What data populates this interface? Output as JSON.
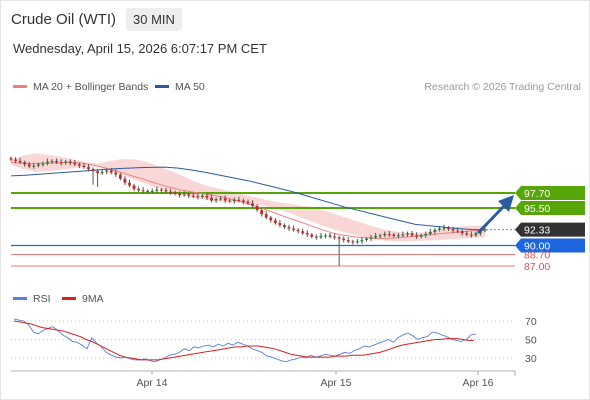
{
  "header": {
    "title": "Crude Oil (WTI)",
    "timeframe": "30 MIN",
    "datetime": "Wednesday, April 15, 2026 6:07:17 PM CET",
    "copyright": "Research © 2026 Trading Central"
  },
  "colors": {
    "bollinger": "#f4a6a6",
    "ma20": "#f08080",
    "ma50": "#2a5aa0",
    "up_candle": "#2e7d32",
    "down_candle": "#c62828",
    "resistance": "#56a60a",
    "support": "#1e66e0",
    "support_red": "#e05050",
    "last_price": "#333333",
    "arrow": "#2a5aa0",
    "rsi": "#5b7fd6",
    "rsi_ma": "#d82020"
  },
  "chart_data": [
    {
      "type": "candlestick",
      "legend": [
        {
          "label": "MA 20 + Bollinger Bands",
          "color": "#f08080"
        },
        {
          "label": "MA 50",
          "color": "#2a5aa0"
        }
      ],
      "x_ticks": [
        "Apr 14",
        "Apr 15",
        "Apr 16"
      ],
      "y_range": [
        86.5,
        100.5
      ],
      "levels": [
        {
          "label": "97.70",
          "value": 97.7,
          "kind": "resistance"
        },
        {
          "label": "95.50",
          "value": 95.5,
          "kind": "resistance"
        },
        {
          "label": "92.33",
          "value": 92.33,
          "kind": "last"
        },
        {
          "label": "90.00",
          "value": 90.0,
          "kind": "support"
        },
        {
          "label": "88.70",
          "value": 88.7,
          "kind": "support2"
        },
        {
          "label": "87.00",
          "value": 87.0,
          "kind": "support2"
        }
      ],
      "candles_close": [
        102.6,
        102.4,
        102.2,
        101.9,
        101.6,
        101.7,
        101.9,
        102.0,
        102.3,
        102.4,
        102.2,
        102.1,
        102.3,
        102.1,
        101.9,
        101.7,
        101.5,
        101.2,
        100.9,
        100.6,
        100.8,
        101.0,
        100.7,
        100.4,
        99.8,
        99.2,
        98.8,
        98.3,
        98.1,
        98.0,
        97.9,
        98.0,
        98.2,
        98.1,
        97.9,
        97.8,
        97.6,
        97.4,
        97.5,
        97.3,
        97.2,
        97.1,
        97.3,
        97.0,
        96.6,
        96.8,
        96.9,
        96.6,
        96.5,
        96.7,
        96.6,
        96.4,
        96.2,
        95.8,
        95.2,
        94.6,
        94.1,
        93.7,
        93.3,
        93.0,
        92.7,
        92.5,
        92.3,
        92.1,
        91.8,
        91.6,
        91.3,
        91.2,
        91.4,
        91.5,
        91.3,
        91.2,
        91.0,
        90.8,
        90.6,
        90.5,
        90.6,
        90.8,
        91.0,
        91.2,
        91.4,
        91.5,
        91.7,
        91.6,
        91.4,
        91.5,
        91.6,
        91.8,
        91.5,
        91.3,
        91.5,
        91.7,
        92.0,
        92.3,
        92.5,
        92.6,
        92.4,
        92.2,
        92.1,
        91.8,
        91.6,
        91.5,
        91.8,
        92.2,
        92.33
      ],
      "ma50": [
        100.2,
        100.3,
        100.45,
        100.6,
        100.75,
        100.9,
        101.05,
        101.2,
        101.3,
        101.4,
        101.45,
        101.5,
        101.35,
        101.05,
        100.7,
        100.3,
        99.9,
        99.5,
        99.0,
        98.5,
        98.0,
        97.4,
        96.8,
        96.2,
        95.6,
        95.1,
        94.6,
        94.1,
        93.6,
        93.1,
        92.9,
        92.7,
        92.5,
        92.35,
        92.33
      ],
      "ma20": [
        102.2,
        102.1,
        102.0,
        102.05,
        102.1,
        102.15,
        102.2,
        102.1,
        101.85,
        101.5,
        101.1,
        100.7,
        100.2,
        99.8,
        99.3,
        98.85,
        98.45,
        98.1,
        97.85,
        97.6,
        97.4,
        97.1,
        96.75,
        96.35,
        95.9,
        95.4,
        94.85,
        94.3,
        93.8,
        93.3,
        92.75,
        92.25,
        91.8,
        91.5,
        91.3,
        91.15,
        91.05,
        91.05,
        91.1,
        91.2,
        91.35,
        91.5,
        91.65,
        91.8,
        91.9,
        92.05,
        92.2,
        92.2
      ],
      "boll_upper": [
        102.6,
        103.2,
        103.5,
        103.3,
        103.0,
        102.6,
        102.2,
        102.0,
        102.4,
        102.7,
        102.6,
        102.2,
        101.5,
        100.8,
        100.0,
        99.2,
        98.6,
        98.2,
        97.8,
        97.3,
        96.9,
        96.5,
        96.2,
        95.9,
        95.7,
        95.2,
        94.6,
        94.0,
        93.4,
        92.8,
        92.3,
        92.0,
        91.8,
        91.9,
        92.2,
        92.6,
        92.8,
        92.9,
        92.9
      ],
      "boll_lower": [
        101.8,
        101.2,
        100.8,
        100.9,
        101.1,
        101.3,
        101.5,
        101.6,
        101.0,
        100.3,
        99.6,
        98.9,
        98.3,
        97.8,
        97.3,
        96.9,
        96.6,
        96.4,
        96.3,
        96.2,
        95.9,
        95.5,
        95.0,
        94.3,
        93.6,
        92.9,
        92.3,
        91.8,
        91.4,
        91.0,
        90.7,
        90.6,
        90.6,
        90.7,
        90.8,
        90.9,
        91.0,
        91.1,
        91.2
      ]
    },
    {
      "type": "line",
      "legend": [
        {
          "label": "RSI",
          "color": "#5b7fd6"
        },
        {
          "label": "9MA",
          "color": "#d82020"
        }
      ],
      "y_ticks": [
        "70",
        "50",
        "30"
      ],
      "y_range": [
        15,
        80
      ],
      "rsi": [
        72,
        71,
        70,
        66,
        58,
        56,
        60,
        62,
        64,
        60,
        55,
        52,
        48,
        47,
        44,
        40,
        52,
        46,
        42,
        36,
        33,
        31,
        30,
        31,
        29,
        28,
        28,
        29,
        27,
        26,
        28,
        30,
        33,
        34,
        36,
        40,
        38,
        42,
        41,
        43,
        44,
        42,
        45,
        43,
        46,
        44,
        47,
        45,
        43,
        40,
        38,
        36,
        32,
        31,
        29,
        27,
        26,
        28,
        29,
        31,
        30,
        33,
        31,
        32,
        34,
        33,
        32,
        34,
        36,
        35,
        38,
        40,
        43,
        42,
        44,
        46,
        48,
        50,
        47,
        52,
        55,
        57,
        54,
        50,
        52,
        53,
        58,
        57,
        55,
        53,
        50,
        49,
        48,
        50,
        55,
        56
      ],
      "rsi_ma": [
        70,
        69,
        68,
        67,
        65,
        63,
        62,
        61,
        60,
        59,
        57,
        55,
        53,
        50,
        48,
        45,
        42,
        39,
        36,
        33,
        31,
        30,
        29,
        28,
        28,
        28,
        28,
        29,
        30,
        31,
        32,
        33,
        34,
        35,
        36,
        37,
        38,
        39,
        40,
        41,
        42,
        42,
        43,
        43,
        43,
        42,
        41,
        40,
        38,
        36,
        34,
        33,
        32,
        31,
        31,
        31,
        31,
        31,
        32,
        32,
        32,
        33,
        33,
        33,
        34,
        35,
        36,
        38,
        40,
        42,
        44,
        45,
        46,
        47,
        48,
        49,
        50,
        50,
        51,
        51,
        51,
        50,
        49,
        49
      ]
    }
  ]
}
